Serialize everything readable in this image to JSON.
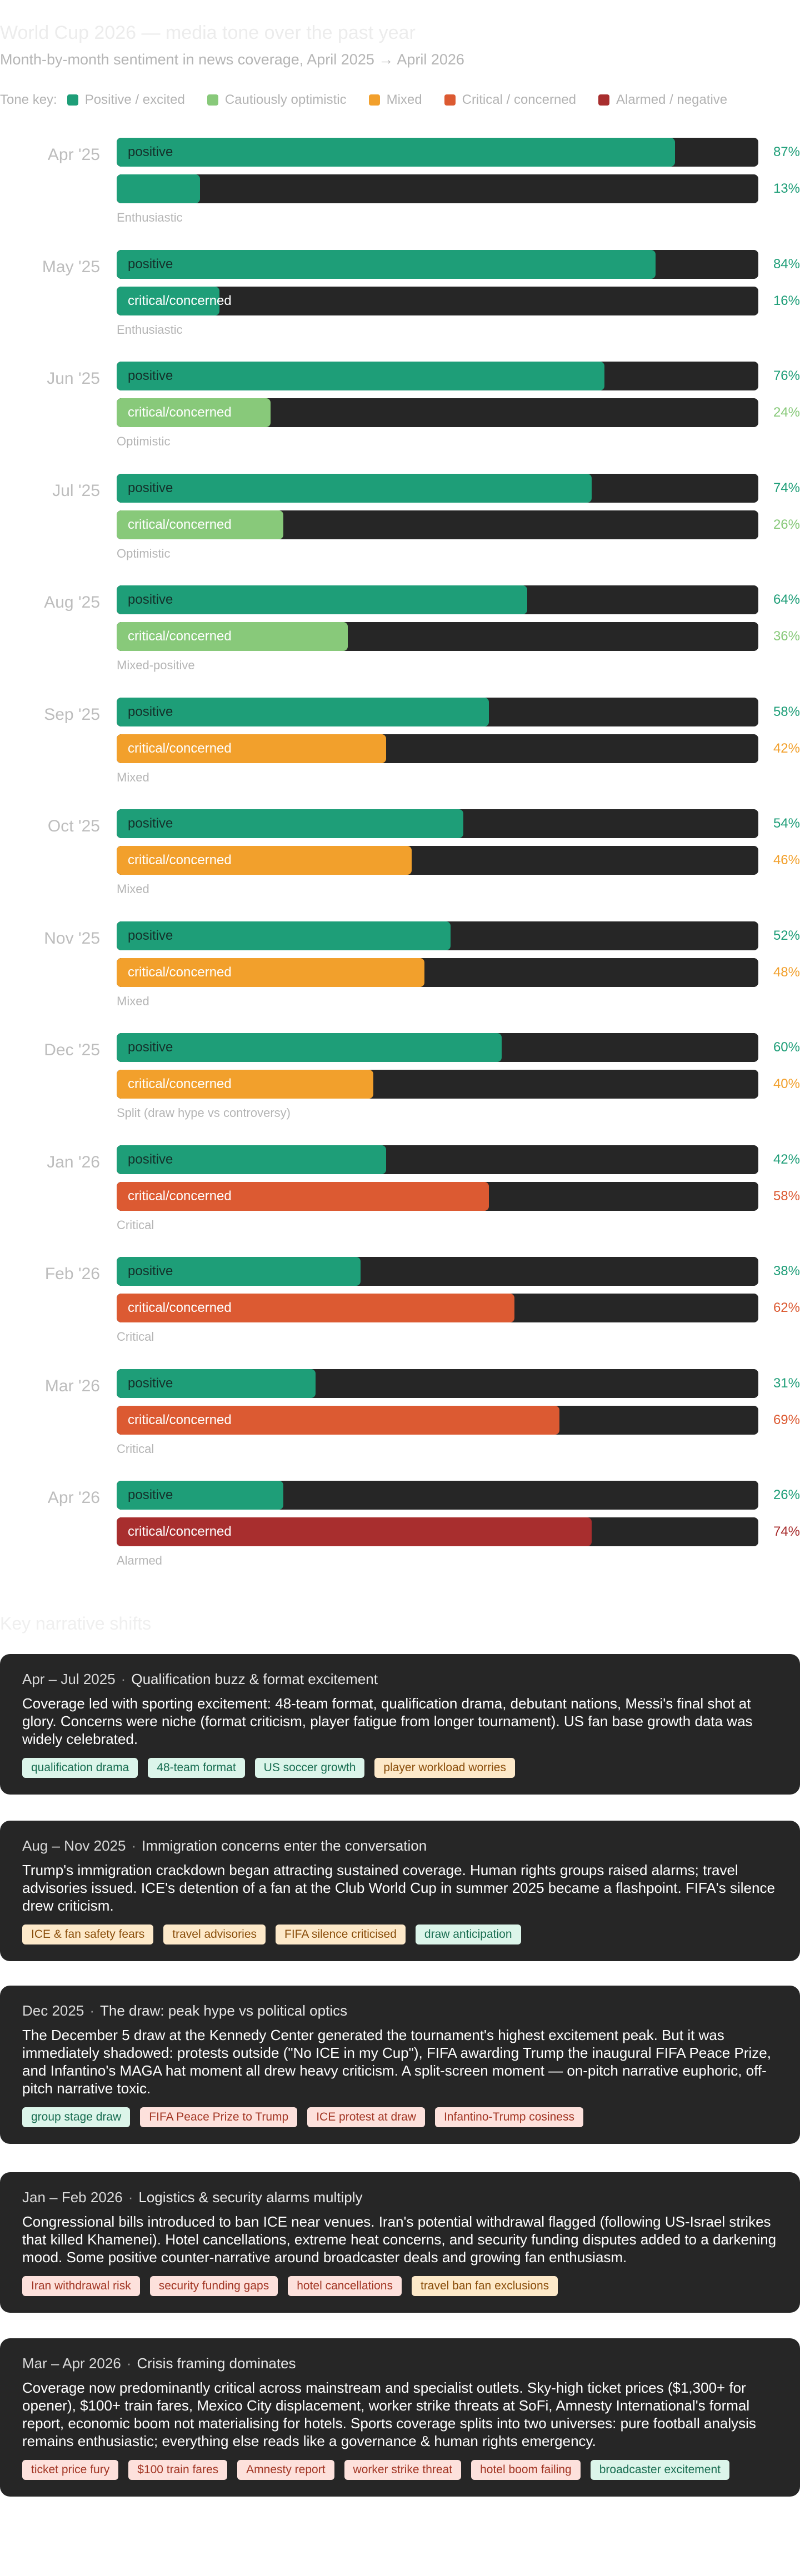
{
  "header": {
    "title": "World Cup 2026 — media tone over the past year",
    "subtitle": "Month-by-month sentiment in news coverage, April 2025 → April 2026"
  },
  "tone_key": {
    "label": "Tone key:",
    "items": [
      {
        "label": "Positive / excited",
        "color": "#1e9e78"
      },
      {
        "label": "Cautiously optimistic",
        "color": "#88c97a"
      },
      {
        "label": "Mixed",
        "color": "#f2a02c"
      },
      {
        "label": "Critical / concerned",
        "color": "#dc5a32"
      },
      {
        "label": "Alarmed / negative",
        "color": "#a82e2e"
      }
    ]
  },
  "chart_data": {
    "type": "bar",
    "unit": "%",
    "xlim": [
      0,
      100
    ],
    "categories": [
      "Apr '25",
      "May '25",
      "Jun '25",
      "Jul '25",
      "Aug '25",
      "Sep '25",
      "Oct '25",
      "Nov '25",
      "Dec '25",
      "Jan '26",
      "Feb '26",
      "Mar '26",
      "Apr '26"
    ],
    "series": [
      {
        "name": "positive",
        "values": [
          87,
          84,
          76,
          74,
          64,
          58,
          54,
          52,
          60,
          42,
          38,
          31,
          26
        ]
      },
      {
        "name": "critical/concerned",
        "values": [
          13,
          16,
          24,
          26,
          36,
          42,
          46,
          48,
          40,
          58,
          62,
          69,
          74
        ]
      }
    ],
    "critical_bar_labels": [
      "",
      "critical/concerned",
      "critical/concerned",
      "critical/concerned",
      "critical/concerned",
      "critical/concerned",
      "critical/concerned",
      "critical/concerned",
      "critical/concerned",
      "critical/concerned",
      "critical/concerned",
      "critical/concerned",
      "critical/concerned"
    ],
    "critical_colors": [
      "#1e9e78",
      "#1e9e78",
      "#88c97a",
      "#88c97a",
      "#88c97a",
      "#f2a02c",
      "#f2a02c",
      "#f2a02c",
      "#f2a02c",
      "#dc5a32",
      "#dc5a32",
      "#dc5a32",
      "#a82e2e"
    ],
    "moods": [
      "Enthusiastic",
      "Enthusiastic",
      "Optimistic",
      "Optimistic",
      "Mixed-positive",
      "Mixed",
      "Mixed",
      "Mixed",
      "Split (draw hype vs controversy)",
      "Critical",
      "Critical",
      "Critical",
      "Alarmed"
    ],
    "positive_color": "#1e9e78",
    "track_color": "#262626"
  },
  "shifts": {
    "heading": "Key narrative shifts",
    "cards": [
      {
        "period": "Apr – Jul 2025",
        "title": "Qualification buzz & format excitement",
        "body": "Coverage led with sporting excitement: 48-team format, qualification drama, debutant nations, Messi's final shot at glory. Concerns were niche (format criticism, player fatigue from longer tournament). US fan base growth data was widely celebrated.",
        "tags": [
          {
            "label": "qualification drama",
            "tone": "pos"
          },
          {
            "label": "48-team format",
            "tone": "pos"
          },
          {
            "label": "US soccer growth",
            "tone": "pos"
          },
          {
            "label": "player workload worries",
            "tone": "mix"
          }
        ]
      },
      {
        "period": "Aug – Nov 2025",
        "title": "Immigration concerns enter the conversation",
        "body": "Trump's immigration crackdown began attracting sustained coverage. Human rights groups raised alarms; travel advisories issued. ICE's detention of a fan at the Club World Cup in summer 2025 became a flashpoint. FIFA's silence drew criticism.",
        "tags": [
          {
            "label": "ICE & fan safety fears",
            "tone": "mix"
          },
          {
            "label": "travel advisories",
            "tone": "mix"
          },
          {
            "label": "FIFA silence criticised",
            "tone": "mix"
          },
          {
            "label": "draw anticipation",
            "tone": "pos"
          }
        ]
      },
      {
        "period": "Dec 2025",
        "title": "The draw: peak hype vs political optics",
        "body": "The December 5 draw at the Kennedy Center generated the tournament's highest excitement peak. But it was immediately shadowed: protests outside (\"No ICE in my Cup\"), FIFA awarding Trump the inaugural FIFA Peace Prize, and Infantino's MAGA hat moment all drew heavy criticism. A split-screen moment — on-pitch narrative euphoric, off-pitch narrative toxic.",
        "tags": [
          {
            "label": "group stage draw",
            "tone": "pos"
          },
          {
            "label": "FIFA Peace Prize to Trump",
            "tone": "crit"
          },
          {
            "label": "ICE protest at draw",
            "tone": "crit"
          },
          {
            "label": "Infantino-Trump cosiness",
            "tone": "crit"
          }
        ]
      },
      {
        "period": "Jan – Feb 2026",
        "title": "Logistics & security alarms multiply",
        "body": "Congressional bills introduced to ban ICE near venues. Iran's potential withdrawal flagged (following US-Israel strikes that killed Khamenei). Hotel cancellations, extreme heat concerns, and security funding disputes added to a darkening mood. Some positive counter-narrative around broadcaster deals and growing fan enthusiasm.",
        "tags": [
          {
            "label": "Iran withdrawal risk",
            "tone": "crit"
          },
          {
            "label": "security funding gaps",
            "tone": "crit"
          },
          {
            "label": "hotel cancellations",
            "tone": "crit"
          },
          {
            "label": "travel ban fan exclusions",
            "tone": "mix"
          }
        ]
      },
      {
        "period": "Mar – Apr 2026",
        "title": "Crisis framing dominates",
        "body": "Coverage now predominantly critical across mainstream and specialist outlets. Sky-high ticket prices ($1,300+ for opener), $100+ train fares, Mexico City displacement, worker strike threats at SoFi, Amnesty International's formal report, economic boom not materialising for hotels. Sports coverage splits into two universes: pure football analysis remains enthusiastic; everything else reads like a governance & human rights emergency.",
        "tags": [
          {
            "label": "ticket price fury",
            "tone": "crit"
          },
          {
            "label": "$100 train fares",
            "tone": "crit"
          },
          {
            "label": "Amnesty report",
            "tone": "crit"
          },
          {
            "label": "worker strike threat",
            "tone": "crit"
          },
          {
            "label": "hotel boom failing",
            "tone": "crit"
          },
          {
            "label": "broadcaster excitement",
            "tone": "pos"
          }
        ]
      }
    ]
  }
}
